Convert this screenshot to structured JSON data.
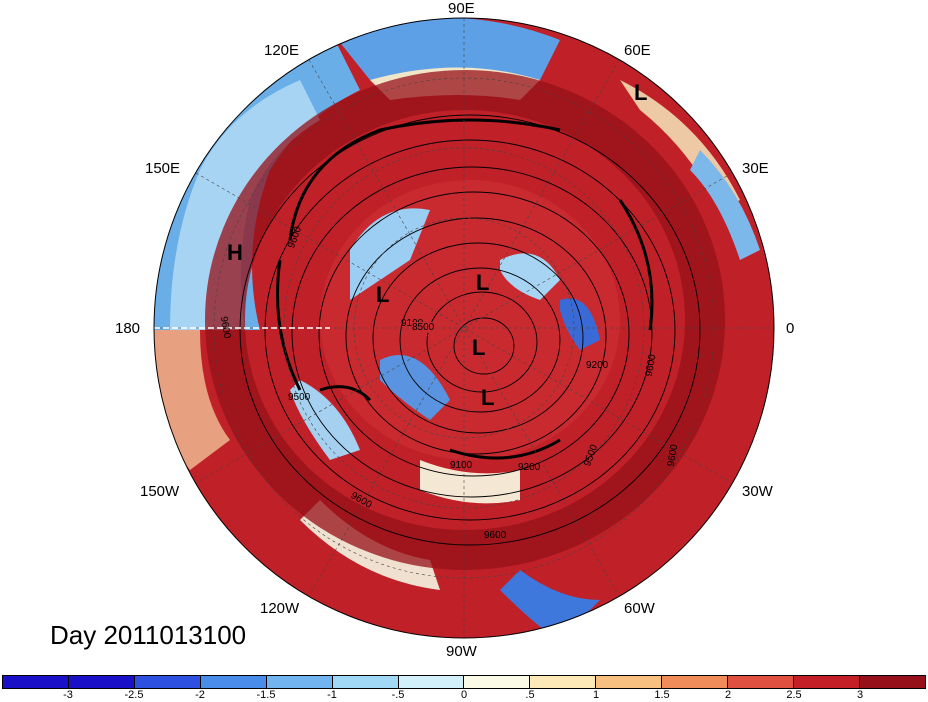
{
  "title": "Day 2011013100",
  "longitude_labels": [
    "90E",
    "60E",
    "30E",
    "0",
    "30W",
    "60W",
    "90W",
    "120W",
    "150W",
    "180",
    "150E",
    "120E"
  ],
  "pressure_center_labels": [
    "L",
    "H",
    "L",
    "L",
    "L",
    "L"
  ],
  "contour_labels": [
    "9600",
    "9600",
    "9100",
    "8500",
    "9200",
    "9500",
    "9600",
    "9600",
    "9600",
    "9100",
    "9200",
    "9500",
    "9600"
  ],
  "colorbar": {
    "ticks": [
      "-3",
      "-2.5",
      "-2",
      "-1.5",
      "-1",
      "-.5",
      "0",
      ".5",
      "1",
      "1.5",
      "2",
      "2.5",
      "3"
    ],
    "colors": [
      "#1a10c8",
      "#2d50e0",
      "#4a8cea",
      "#72b4f0",
      "#a0d8f6",
      "#d2f0fa",
      "#fafae6",
      "#fde8b8",
      "#f8c080",
      "#f08c5a",
      "#e05040",
      "#c41e26",
      "#96101a"
    ]
  }
}
